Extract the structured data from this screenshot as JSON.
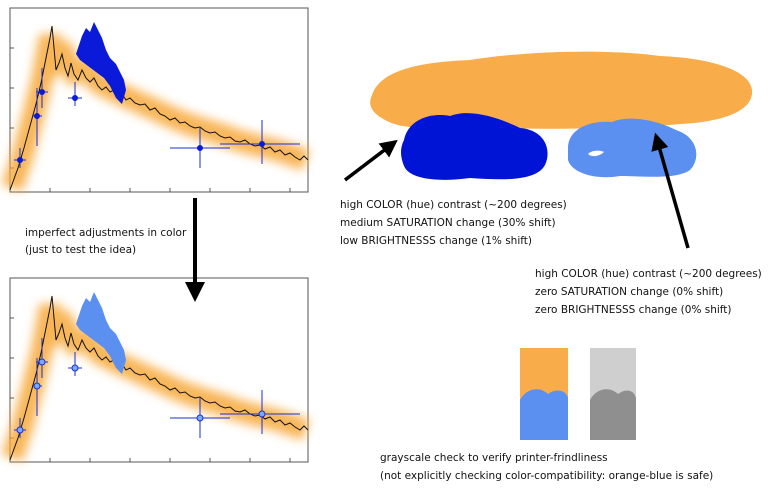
{
  "left_note": {
    "lines": [
      "imperfect adjustments in color",
      "(just to test the idea)"
    ]
  },
  "dark_blue_note": {
    "lines": [
      "high COLOR (hue) contrast (~200 degrees)",
      "medium SATURATION change (30% shift)",
      "low BRIGHTNESSS change (1% shift)"
    ]
  },
  "light_blue_note": {
    "lines": [
      "high COLOR (hue) contrast (~200 degrees)",
      "zero SATURATION change (0% shift)",
      "zero BRIGHTNESSS change (0% shift)"
    ]
  },
  "grayscale_note": {
    "lines": [
      "grayscale check to verify printer-frindliness",
      "(not explicitly checking color-compatibility: orange-blue is safe)"
    ]
  }
}
